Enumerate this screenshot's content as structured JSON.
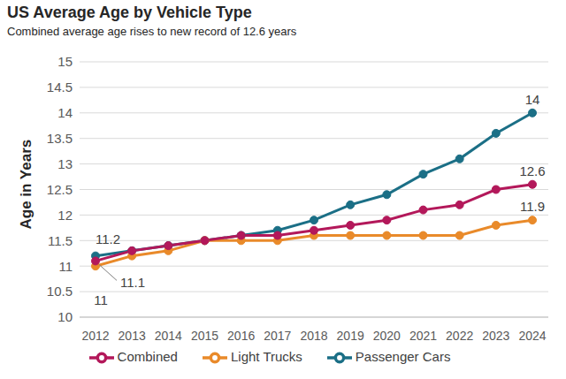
{
  "chart_data": {
    "type": "line",
    "title": "US Average Age by Vehicle Type",
    "subtitle": "Combined average age rises to new record of 12.6 years",
    "y_label": "Age in Years",
    "categories": [
      "2012",
      "2013",
      "2014",
      "2015",
      "2016",
      "2017",
      "2018",
      "2019",
      "2020",
      "2021",
      "2022",
      "2023",
      "2024"
    ],
    "series": [
      {
        "name": "Passenger Cars",
        "color": "#1b6f86",
        "marker": "circle",
        "data_labels": true,
        "values": [
          11.2,
          11.3,
          11.4,
          11.5,
          11.6,
          11.7,
          11.9,
          12.2,
          12.4,
          12.8,
          13.1,
          13.6,
          14.0
        ],
        "value_labels": [
          "11.2",
          null,
          null,
          null,
          null,
          null,
          null,
          null,
          null,
          null,
          null,
          null,
          "14"
        ]
      },
      {
        "name": "Light Trucks",
        "color": "#e98a2a",
        "marker": "circle",
        "data_labels": true,
        "values": [
          11.0,
          11.2,
          11.3,
          11.5,
          11.5,
          11.5,
          11.6,
          11.6,
          11.6,
          11.6,
          11.6,
          11.8,
          11.9
        ],
        "value_labels": [
          "11",
          null,
          null,
          null,
          null,
          null,
          null,
          null,
          null,
          null,
          null,
          null,
          "11.9"
        ]
      },
      {
        "name": "Combined",
        "color": "#b3185a",
        "marker": "circle",
        "data_labels": true,
        "values": [
          11.1,
          11.3,
          11.4,
          11.5,
          11.6,
          11.6,
          11.7,
          11.8,
          11.9,
          12.1,
          12.2,
          12.5,
          12.6
        ],
        "value_labels": [
          "11.1",
          null,
          null,
          null,
          null,
          null,
          null,
          null,
          null,
          null,
          null,
          null,
          "12.6"
        ]
      }
    ],
    "ylim": [
      10,
      15
    ],
    "yticks": [
      10,
      10.5,
      11,
      11.5,
      12,
      12.5,
      13,
      13.5,
      14,
      14.5,
      15
    ],
    "grid": true,
    "legend": "bottom"
  }
}
